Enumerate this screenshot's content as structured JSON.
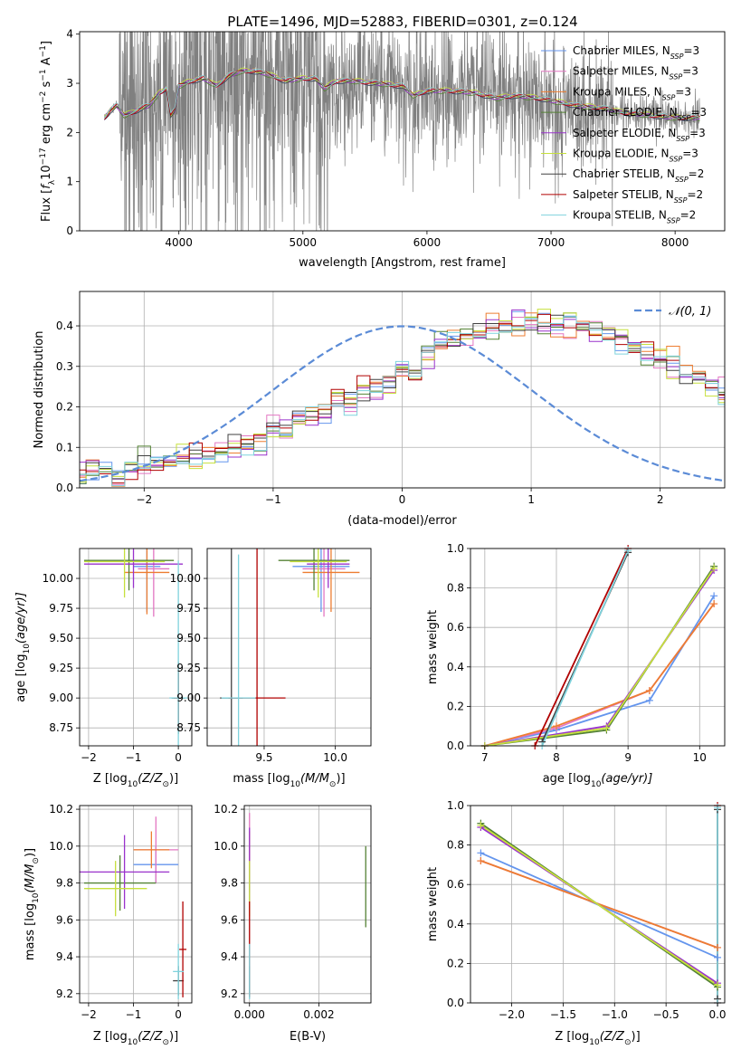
{
  "figure_title": "PLATE=1496, MJD=52883, FIBERID=0301, z=0.124",
  "models": [
    {
      "name": "Chabrier MILES",
      "nssp": "3",
      "color": "#6495ED"
    },
    {
      "name": "Salpeter MILES",
      "nssp": "3",
      "color": "#E377C2"
    },
    {
      "name": "Kroupa MILES",
      "nssp": "3",
      "color": "#ED7D31"
    },
    {
      "name": "Chabrier ELODIE",
      "nssp": "3",
      "color": "#548235"
    },
    {
      "name": "Salpeter ELODIE",
      "nssp": "3",
      "color": "#9932CC"
    },
    {
      "name": "Kroupa ELODIE",
      "nssp": "3",
      "color": "#C6E03C"
    },
    {
      "name": "Chabrier STELIB",
      "nssp": "2",
      "color": "#404040"
    },
    {
      "name": "Salpeter STELIB",
      "nssp": "2",
      "color": "#B00000"
    },
    {
      "name": "Kroupa STELIB",
      "nssp": "2",
      "color": "#7FD3DD"
    }
  ],
  "chart_data": [
    {
      "id": "spectrum",
      "type": "line",
      "xlabel": "wavelength [Angstrom, rest frame]",
      "ylabel_main": "Flux [",
      "ylabel_sym": "f",
      "ylabel_sub": "λ",
      "ylabel_mid": "10",
      "ylabel_exp1": "−17",
      "ylabel_mid2": " erg cm",
      "ylabel_exp2": "−2",
      "ylabel_mid3": " s",
      "ylabel_exp3": "−1",
      "ylabel_mid4": " A",
      "ylabel_exp4": "−1",
      "ylabel_end": "]",
      "xlim": [
        3200,
        8400
      ],
      "ylim": [
        0,
        4.05
      ],
      "xticks": [
        4000,
        5000,
        6000,
        7000,
        8000
      ],
      "yticks": [
        0,
        1,
        2,
        3,
        4
      ],
      "legend_sub": "SSP",
      "legend_loc": "upper right",
      "data_color": "#808080",
      "continuum": [
        [
          3400,
          2.3
        ],
        [
          3450,
          2.45
        ],
        [
          3500,
          2.55
        ],
        [
          3560,
          2.35
        ],
        [
          3620,
          2.4
        ],
        [
          3700,
          2.5
        ],
        [
          3760,
          2.55
        ],
        [
          3840,
          2.8
        ],
        [
          3900,
          2.9
        ],
        [
          3934,
          2.35
        ],
        [
          3968,
          2.45
        ],
        [
          4000,
          2.95
        ],
        [
          4100,
          3.05
        ],
        [
          4200,
          3.1
        ],
        [
          4304,
          2.95
        ],
        [
          4400,
          3.15
        ],
        [
          4500,
          3.25
        ],
        [
          4600,
          3.25
        ],
        [
          4700,
          3.2
        ],
        [
          4861,
          3.05
        ],
        [
          5000,
          3.1
        ],
        [
          5100,
          3.1
        ],
        [
          5175,
          2.9
        ],
        [
          5270,
          3.05
        ],
        [
          5400,
          3.05
        ],
        [
          5600,
          3.0
        ],
        [
          5800,
          2.95
        ],
        [
          5893,
          2.75
        ],
        [
          6000,
          2.85
        ],
        [
          6200,
          2.85
        ],
        [
          6400,
          2.8
        ],
        [
          6563,
          2.7
        ],
        [
          6700,
          2.75
        ],
        [
          6900,
          2.7
        ],
        [
          7000,
          2.65
        ],
        [
          7200,
          2.55
        ],
        [
          7400,
          2.5
        ],
        [
          7600,
          2.4
        ],
        [
          7800,
          2.35
        ],
        [
          8000,
          2.3
        ],
        [
          8200,
          2.3
        ]
      ]
    },
    {
      "id": "residuals",
      "type": "line",
      "xlabel": "(data-model)/error",
      "ylabel": "Normed distribution",
      "xlim": [
        -2.5,
        2.5
      ],
      "ylim": [
        0,
        0.485
      ],
      "xticks": [
        -2,
        -1,
        0,
        1,
        2
      ],
      "yticks": [
        0.0,
        0.1,
        0.2,
        0.3,
        0.4
      ],
      "legend_label": "𝒩(0, 1)",
      "legend_loc": "upper right",
      "bin_width": 0.1,
      "hist_base": [
        0.03,
        0.04,
        0.04,
        0.03,
        0.04,
        0.05,
        0.06,
        0.07,
        0.07,
        0.08,
        0.09,
        0.09,
        0.1,
        0.11,
        0.12,
        0.15,
        0.14,
        0.17,
        0.18,
        0.18,
        0.21,
        0.21,
        0.24,
        0.25,
        0.27,
        0.3,
        0.29,
        0.33,
        0.35,
        0.36,
        0.37,
        0.38,
        0.39,
        0.4,
        0.4,
        0.41,
        0.41,
        0.4,
        0.4,
        0.4,
        0.39,
        0.38,
        0.36,
        0.34,
        0.33,
        0.32,
        0.3,
        0.28,
        0.27,
        0.25,
        0.23,
        0.22,
        0.21,
        0.19,
        0.18,
        0.16,
        0.14,
        0.13,
        0.12,
        0.1,
        0.09,
        0.08,
        0.07,
        0.06,
        0.06,
        0.05,
        0.05,
        0.04,
        0.04,
        0.04,
        0.03,
        0.03
      ],
      "hist_first_x": -2.55
    },
    {
      "id": "age_vs_Z",
      "type": "scatter",
      "xlabel": "Z [log",
      "xlabel_sub": "10",
      "xlabel_arg": "(Z/Z",
      "xlabel_end": ")]",
      "ylabel": "age  [log",
      "ylabel_sub": "10",
      "ylabel_arg": "(age/yr)]",
      "xlim": [
        -2.2,
        0.3
      ],
      "ylim": [
        8.6,
        10.25
      ],
      "xticks": [
        -2,
        -1,
        0
      ],
      "yticks": [
        8.75,
        9.0,
        9.25,
        9.5,
        9.75,
        10.0
      ],
      "points": [
        {
          "m": 0,
          "x": -0.7,
          "y": 10.1,
          "xe": 0.3,
          "ye": 0.38
        },
        {
          "m": 1,
          "x": -0.55,
          "y": 10.08,
          "xe": 0.35,
          "ye": 0.4
        },
        {
          "m": 2,
          "x": -0.7,
          "y": 10.05,
          "xe": 0.5,
          "ye": 0.35
        },
        {
          "m": 3,
          "x": -1.1,
          "y": 10.15,
          "xe": 1.0,
          "ye": 0.25
        },
        {
          "m": 4,
          "x": -1.0,
          "y": 10.12,
          "xe": 1.1,
          "ye": 0.2
        },
        {
          "m": 5,
          "x": -1.2,
          "y": 10.14,
          "xe": 0.9,
          "ye": 0.3
        },
        {
          "m": 6,
          "x": 0.0,
          "y": 9.0,
          "xe": 0.15,
          "ye": 0.3
        },
        {
          "m": 7,
          "x": 0.0,
          "y": 9.0,
          "xe": 0.1,
          "ye": 0.25
        },
        {
          "m": 8,
          "x": 0.0,
          "y": 9.0,
          "xe": 0.2,
          "ye": 1.15
        }
      ]
    },
    {
      "id": "age_vs_mass",
      "type": "scatter",
      "xlabel": "mass [log",
      "xlabel_sub": "10",
      "xlabel_arg": "(M/M",
      "xlabel_end": ")]",
      "xlim": [
        9.1,
        10.25
      ],
      "ylim": [
        8.6,
        10.25
      ],
      "xticks": [
        9.5,
        10.0
      ],
      "yticks": [
        8.75,
        9.0,
        9.25,
        9.5,
        9.75,
        10.0
      ],
      "points": [
        {
          "m": 0,
          "x": 9.9,
          "y": 10.1,
          "xe": 0.2,
          "ye": 0.38
        },
        {
          "m": 1,
          "x": 9.92,
          "y": 10.08,
          "xe": 0.15,
          "ye": 0.4
        },
        {
          "m": 2,
          "x": 9.97,
          "y": 10.05,
          "xe": 0.2,
          "ye": 0.33
        },
        {
          "m": 3,
          "x": 9.85,
          "y": 10.15,
          "xe": 0.25,
          "ye": 0.25
        },
        {
          "m": 4,
          "x": 9.95,
          "y": 10.12,
          "xe": 0.15,
          "ye": 0.2
        },
        {
          "m": 5,
          "x": 9.88,
          "y": 10.14,
          "xe": 0.2,
          "ye": 0.3
        },
        {
          "m": 6,
          "x": 9.27,
          "y": 9.0,
          "xe": 0.08,
          "ye": 1.25
        },
        {
          "m": 7,
          "x": 9.45,
          "y": 9.0,
          "xe": 0.2,
          "ye": 1.25
        },
        {
          "m": 8,
          "x": 9.32,
          "y": 9.0,
          "xe": 0.12,
          "ye": 1.2
        }
      ]
    },
    {
      "id": "massweight_vs_age",
      "type": "line",
      "xlabel": "age  [log",
      "xlabel_sub": "10",
      "xlabel_arg": "(age/yr)]",
      "ylabel": "mass weight",
      "xlim": [
        6.8,
        10.35
      ],
      "ylim": [
        0,
        1
      ],
      "xticks": [
        7,
        8,
        9,
        10
      ],
      "yticks": [
        0.0,
        0.2,
        0.4,
        0.6,
        0.8,
        1.0
      ],
      "series": [
        {
          "m": 0,
          "x": [
            7.0,
            8.0,
            9.3,
            10.2
          ],
          "y": [
            0.0,
            0.08,
            0.23,
            0.76
          ]
        },
        {
          "m": 1,
          "x": [
            7.0,
            8.0,
            9.3,
            10.2
          ],
          "y": [
            0.0,
            0.09,
            0.28,
            0.72
          ]
        },
        {
          "m": 2,
          "x": [
            7.0,
            8.0,
            9.3,
            10.2
          ],
          "y": [
            0.0,
            0.1,
            0.28,
            0.72
          ]
        },
        {
          "m": 3,
          "x": [
            7.0,
            8.7,
            10.2
          ],
          "y": [
            0.0,
            0.08,
            0.91
          ]
        },
        {
          "m": 4,
          "x": [
            7.0,
            8.7,
            10.2
          ],
          "y": [
            0.0,
            0.1,
            0.89
          ]
        },
        {
          "m": 5,
          "x": [
            7.0,
            8.7,
            10.2
          ],
          "y": [
            0.0,
            0.09,
            0.9
          ]
        },
        {
          "m": 6,
          "x": [
            7.8,
            9.0
          ],
          "y": [
            0.02,
            0.98
          ]
        },
        {
          "m": 7,
          "x": [
            7.7,
            9.0
          ],
          "y": [
            0.0,
            1.0
          ]
        },
        {
          "m": 8,
          "x": [
            7.8,
            9.0
          ],
          "y": [
            0.0,
            0.99
          ]
        }
      ]
    },
    {
      "id": "mass_vs_Z",
      "type": "scatter",
      "xlabel": "Z [log",
      "xlabel_sub": "10",
      "xlabel_arg": "(Z/Z",
      "xlabel_end": ")]",
      "ylabel": "mass [log",
      "ylabel_sub": "10",
      "ylabel_arg": "(M/M",
      "ylabel_end": ")]",
      "xlim": [
        -2.2,
        0.3
      ],
      "ylim": [
        9.15,
        10.22
      ],
      "xticks": [
        -2,
        -1,
        0
      ],
      "yticks": [
        9.2,
        9.4,
        9.6,
        9.8,
        10.0,
        10.2
      ],
      "points": [
        {
          "m": 0,
          "x": -0.5,
          "y": 9.9,
          "xe": 0.5,
          "ye": 0.1
        },
        {
          "m": 1,
          "x": -0.5,
          "y": 9.98,
          "xe": 0.5,
          "ye": 0.18
        },
        {
          "m": 2,
          "x": -0.6,
          "y": 9.98,
          "xe": 0.4,
          "ye": 0.1
        },
        {
          "m": 3,
          "x": -1.3,
          "y": 9.8,
          "xe": 0.8,
          "ye": 0.15
        },
        {
          "m": 4,
          "x": -1.2,
          "y": 9.86,
          "xe": 1.0,
          "ye": 0.2
        },
        {
          "m": 5,
          "x": -1.4,
          "y": 9.77,
          "xe": 0.7,
          "ye": 0.15
        },
        {
          "m": 6,
          "x": 0.0,
          "y": 9.27,
          "xe": 0.12,
          "ye": 0.08
        },
        {
          "m": 7,
          "x": 0.1,
          "y": 9.44,
          "xe": 0.08,
          "ye": 0.26
        },
        {
          "m": 8,
          "x": 0.0,
          "y": 9.32,
          "xe": 0.12,
          "ye": 0.15
        }
      ]
    },
    {
      "id": "mass_vs_ebv",
      "type": "scatter",
      "xlabel": "E(B-V)",
      "xlim": [
        -0.00015,
        0.0035
      ],
      "ylim": [
        9.15,
        10.22
      ],
      "xticks": [
        0.0,
        0.002
      ],
      "xtick_labels": [
        "0.000",
        "0.002"
      ],
      "yticks": [
        9.2,
        9.4,
        9.6,
        9.8,
        10.0,
        10.2
      ],
      "points": [
        {
          "m": 0,
          "x": 0.0,
          "y": 9.9,
          "ye": 0.15
        },
        {
          "m": 1,
          "x": 0.0,
          "y": 10.0,
          "ye": 0.18
        },
        {
          "m": 2,
          "x": 0.0,
          "y": 9.98,
          "ye": 0.1
        },
        {
          "m": 3,
          "x": 0.00335,
          "y": 9.78,
          "ye": 0.22
        },
        {
          "m": 4,
          "x": 0.0,
          "y": 9.9,
          "ye": 0.2
        },
        {
          "m": 5,
          "x": 0.0,
          "y": 9.77,
          "ye": 0.15
        },
        {
          "m": 6,
          "x": 0.0,
          "y": 9.27,
          "ye": 0.08
        },
        {
          "m": 7,
          "x": 0.0,
          "y": 9.44,
          "ye": 0.26
        },
        {
          "m": 8,
          "x": 0.0,
          "y": 9.32,
          "ye": 0.15
        }
      ]
    },
    {
      "id": "massweight_vs_Z",
      "type": "line",
      "xlabel": "Z [log",
      "xlabel_sub": "10",
      "xlabel_arg": "(Z/Z",
      "xlabel_end": ")]",
      "ylabel": "mass weight",
      "xlim": [
        -2.4,
        0.07
      ],
      "ylim": [
        0,
        1
      ],
      "xticks": [
        -2.0,
        -1.5,
        -1.0,
        -0.5,
        0.0
      ],
      "yticks": [
        0.0,
        0.2,
        0.4,
        0.6,
        0.8,
        1.0
      ],
      "series": [
        {
          "m": 0,
          "x": [
            -2.3,
            0.0
          ],
          "y": [
            0.76,
            0.23
          ]
        },
        {
          "m": 1,
          "x": [
            -2.3,
            0.0
          ],
          "y": [
            0.72,
            0.28
          ]
        },
        {
          "m": 2,
          "x": [
            -2.3,
            0.0
          ],
          "y": [
            0.72,
            0.28
          ]
        },
        {
          "m": 3,
          "x": [
            -2.3,
            0.0
          ],
          "y": [
            0.91,
            0.08
          ]
        },
        {
          "m": 4,
          "x": [
            -2.3,
            0.0
          ],
          "y": [
            0.89,
            0.1
          ]
        },
        {
          "m": 5,
          "x": [
            -2.3,
            0.0
          ],
          "y": [
            0.9,
            0.09
          ]
        },
        {
          "m": 6,
          "x": [
            0.0,
            0.0
          ],
          "y": [
            0.02,
            0.98
          ]
        },
        {
          "m": 7,
          "x": [
            0.0,
            0.0
          ],
          "y": [
            0.0,
            1.0
          ]
        },
        {
          "m": 8,
          "x": [
            0.0,
            0.0
          ],
          "y": [
            0.0,
            0.99
          ]
        }
      ]
    }
  ]
}
